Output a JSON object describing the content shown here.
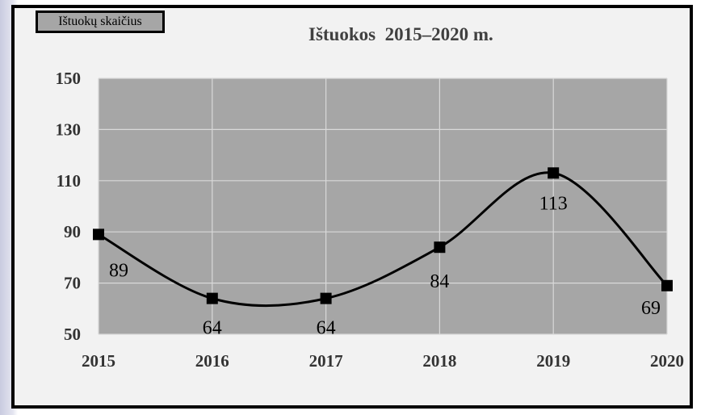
{
  "legend_label": "Ištuokų skaičius",
  "colors": {
    "plot_bg": "#a6a6a6",
    "frame": "#000000",
    "line": "#000000",
    "marker": "#000000",
    "grid": "#d9d9d9"
  },
  "chart_data": {
    "type": "line",
    "title": "Ištuokos  2015–2020 m.",
    "xlabel": "",
    "ylabel": "",
    "categories": [
      "2015",
      "2016",
      "2017",
      "2018",
      "2019",
      "2020"
    ],
    "series": [
      {
        "name": "Ištuokų skaičius",
        "values": [
          89,
          64,
          64,
          84,
          113,
          69
        ],
        "marker": "square",
        "smooth": true
      }
    ],
    "data_labels": [
      "89",
      "64",
      "64",
      "84",
      "113",
      "69"
    ],
    "ylim": [
      50,
      150
    ],
    "yticks": [
      50,
      70,
      90,
      110,
      130,
      150
    ],
    "grid": true,
    "legend_position": "top-left"
  }
}
